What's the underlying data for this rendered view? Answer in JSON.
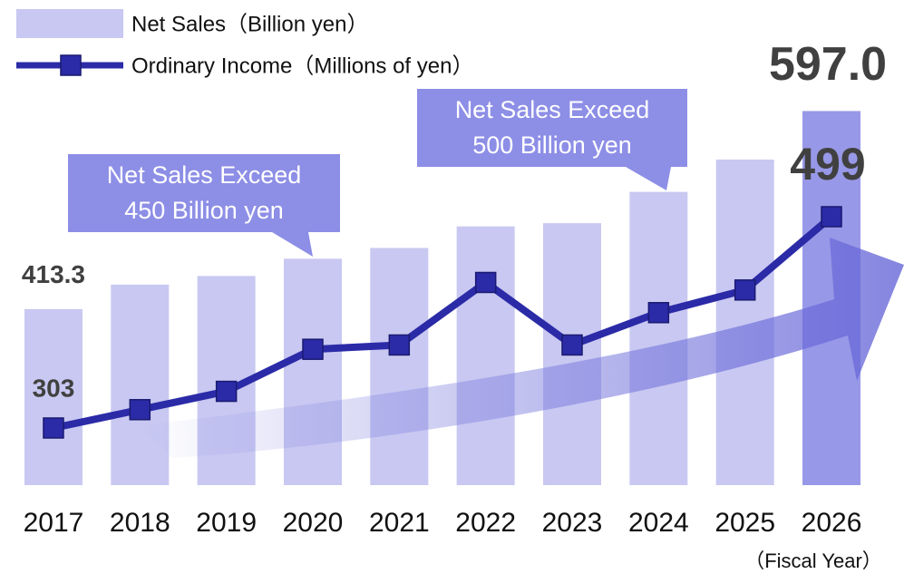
{
  "chart_data": {
    "type": "bar-line",
    "categories": [
      "2017",
      "2018",
      "2019",
      "2020",
      "2021",
      "2022",
      "2023",
      "2024",
      "2025",
      "2026"
    ],
    "series": [
      {
        "name": "Net Sales（Billion yen）",
        "type": "bar",
        "color": "#c8c8f2",
        "colors": [
          "#c8c8f2",
          "#c8c8f2",
          "#c8c8f2",
          "#c8c8f2",
          "#c8c8f2",
          "#c8c8f2",
          "#c8c8f2",
          "#c8c8f2",
          "#c8c8f2",
          "#9898e8"
        ],
        "values": [
          413.3,
          436,
          444,
          460,
          470,
          490,
          493,
          522,
          552,
          597.0
        ],
        "value_labels": [
          "413.3",
          null,
          null,
          null,
          null,
          null,
          null,
          null,
          null,
          "597.0"
        ]
      },
      {
        "name": "Ordinary Income（Millions of yen）",
        "type": "line",
        "axis": "y2",
        "color": "#2b2ba8",
        "values": [
          303,
          320,
          337,
          376,
          380,
          438,
          380,
          410,
          431,
          499
        ],
        "value_labels": [
          "303",
          null,
          null,
          null,
          null,
          null,
          null,
          null,
          null,
          "499"
        ]
      }
    ],
    "ylim": [
      250,
      700
    ],
    "y2lim": [
      250,
      700
    ],
    "x_label": "（Fiscal Year）",
    "annotations": [
      {
        "category": "2020",
        "lines": [
          "Net Sales Exceed",
          "450 Billion yen"
        ]
      },
      {
        "category": "2024",
        "lines": [
          "Net Sales Exceed",
          "500 Billion yen"
        ]
      }
    ],
    "legend": "top-left"
  }
}
